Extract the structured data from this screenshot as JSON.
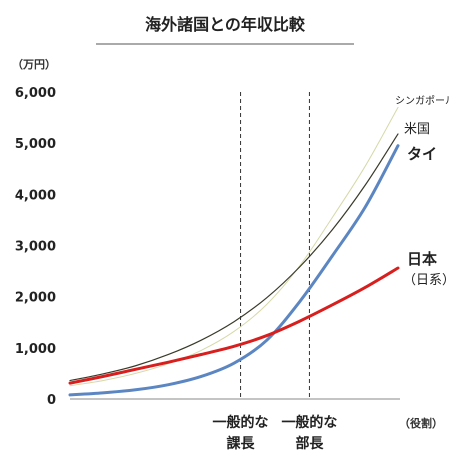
{
  "chart_data": {
    "type": "line",
    "title": "海外諸国との年収比較",
    "y_unit": "（万円）",
    "x_unit": "（役割）",
    "ylim": [
      0,
      6000
    ],
    "yticks": [
      "0",
      "1,000",
      "2,000",
      "3,000",
      "4,000",
      "5,000",
      "6,000"
    ],
    "xlim": [
      0,
      10
    ],
    "categories": [
      {
        "line1": "一般的な",
        "line2": "課長",
        "x": 5.2
      },
      {
        "line1": "一般的な",
        "line2": "部長",
        "x": 7.3
      }
    ],
    "x": [
      0,
      1,
      2,
      3,
      4,
      5,
      6,
      7,
      8,
      9,
      10
    ],
    "series": [
      {
        "name": "シンガポール",
        "color": "#d6d9a8",
        "values": [
          260,
          360,
          500,
          690,
          950,
          1320,
          1850,
          2600,
          3550,
          4550,
          5700
        ]
      },
      {
        "name": "米国",
        "color": "#3a3a2a",
        "values": [
          360,
          490,
          650,
          870,
          1150,
          1510,
          1980,
          2580,
          3310,
          4180,
          5180
        ]
      },
      {
        "name": "タイ",
        "color": "#5b86c2",
        "values": [
          80,
          120,
          180,
          280,
          440,
          700,
          1150,
          1900,
          2800,
          3750,
          4950
        ]
      },
      {
        "name": "日本",
        "sublabel": "（日系）",
        "color": "#d91e1e",
        "values": [
          310,
          440,
          580,
          720,
          870,
          1030,
          1240,
          1520,
          1840,
          2180,
          2560
        ]
      }
    ]
  }
}
